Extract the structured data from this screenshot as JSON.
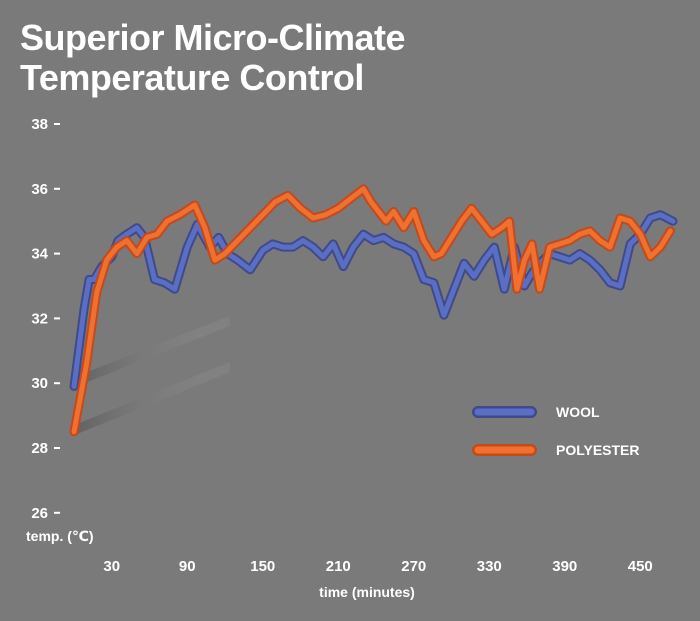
{
  "title_line1": "Superior Micro-Climate",
  "title_line2": "Temperature Control",
  "chart_data": {
    "type": "line",
    "title": "Superior Micro-Climate Temperature Control",
    "xlabel": "time (minutes)",
    "ylabel": "temp. (℃)",
    "xlim": [
      0,
      480
    ],
    "ylim": [
      26,
      38
    ],
    "xticks": [
      30,
      90,
      150,
      210,
      270,
      330,
      390,
      450
    ],
    "yticks": [
      26,
      28,
      30,
      32,
      34,
      36,
      38
    ],
    "grid": false,
    "legend_position": "right",
    "series": [
      {
        "name": "WOOL",
        "color": "#5a6fc4",
        "x": [
          0,
          8,
          12,
          16,
          22,
          30,
          35,
          42,
          50,
          56,
          64,
          72,
          80,
          90,
          98,
          108,
          115,
          122,
          130,
          140,
          150,
          158,
          166,
          174,
          182,
          190,
          198,
          206,
          214,
          222,
          230,
          238,
          246,
          254,
          262,
          270,
          278,
          286,
          294,
          302,
          310,
          318,
          326,
          334,
          342,
          350,
          358,
          364,
          370,
          378,
          386,
          394,
          402,
          410,
          418,
          426,
          434,
          442,
          450,
          458,
          466,
          476
        ],
        "values": [
          29.9,
          32.3,
          33.2,
          33.2,
          33.6,
          33.9,
          34.4,
          34.6,
          34.8,
          34.5,
          33.2,
          33.1,
          32.9,
          34.2,
          34.9,
          34.2,
          34.5,
          34.0,
          33.8,
          33.5,
          34.1,
          34.3,
          34.2,
          34.2,
          34.4,
          34.2,
          33.9,
          34.3,
          33.6,
          34.2,
          34.6,
          34.4,
          34.5,
          34.3,
          34.2,
          34.0,
          33.2,
          33.1,
          32.1,
          32.9,
          33.7,
          33.3,
          33.8,
          34.2,
          32.9,
          34.2,
          33.0,
          33.4,
          33.7,
          34.0,
          33.9,
          33.8,
          34.0,
          33.8,
          33.5,
          33.1,
          33.0,
          34.3,
          34.6,
          35.1,
          35.2,
          35.0
        ]
      },
      {
        "name": "POLYESTER",
        "color": "#f0702f",
        "x": [
          0,
          10,
          18,
          26,
          34,
          42,
          50,
          58,
          66,
          74,
          84,
          96,
          104,
          112,
          120,
          130,
          140,
          150,
          160,
          170,
          180,
          190,
          200,
          210,
          220,
          230,
          236,
          242,
          248,
          254,
          262,
          270,
          278,
          286,
          292,
          300,
          308,
          316,
          324,
          332,
          340,
          346,
          352,
          358,
          364,
          370,
          378,
          386,
          394,
          402,
          410,
          418,
          426,
          434,
          442,
          450,
          458,
          466,
          474
        ],
        "values": [
          28.5,
          30.6,
          32.8,
          33.8,
          34.2,
          34.4,
          34.0,
          34.5,
          34.6,
          35.0,
          35.2,
          35.5,
          34.8,
          33.8,
          34.0,
          34.4,
          34.8,
          35.2,
          35.6,
          35.8,
          35.4,
          35.1,
          35.2,
          35.4,
          35.7,
          36.0,
          35.6,
          35.3,
          35.0,
          35.3,
          34.8,
          35.3,
          34.4,
          33.9,
          34.0,
          34.5,
          35.0,
          35.4,
          35.0,
          34.6,
          34.8,
          35.0,
          32.9,
          33.8,
          34.3,
          32.9,
          34.2,
          34.3,
          34.4,
          34.6,
          34.7,
          34.4,
          34.2,
          35.1,
          35.0,
          34.6,
          33.9,
          34.2,
          34.7
        ]
      }
    ]
  }
}
